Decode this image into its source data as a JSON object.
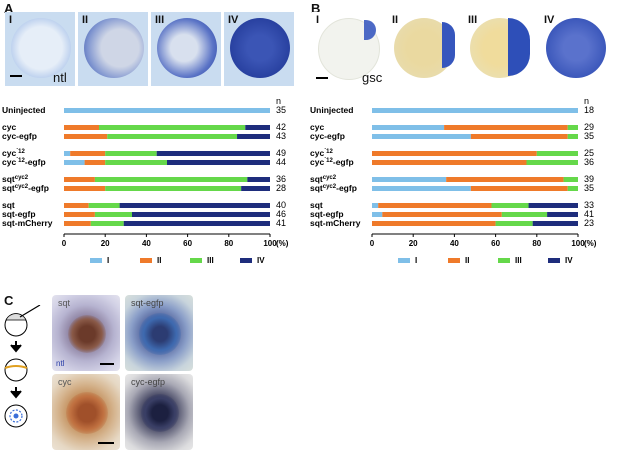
{
  "panels": {
    "a": {
      "letter": "A",
      "stain": "ntl"
    },
    "b": {
      "letter": "B",
      "stain": "gsc"
    },
    "c": {
      "letter": "C"
    }
  },
  "classes": [
    "I",
    "II",
    "III",
    "IV"
  ],
  "colors": {
    "I": "#7fbfe8",
    "II": "#ef7a2a",
    "III": "#65d84a",
    "IV": "#1e2d7c"
  },
  "axis": {
    "ticks": [
      "0",
      "20",
      "40",
      "60",
      "80",
      "100"
    ],
    "unit": "(%)",
    "n_header": "n"
  },
  "panelC": {
    "photos": [
      "sqt",
      "sqt-egfp",
      "cyc",
      "cyc-egfp"
    ],
    "stain": "ntl"
  },
  "chart_data": [
    {
      "type": "bar",
      "stacked": true,
      "orientation": "horizontal",
      "title": "A",
      "categories": [
        "Uninjected",
        "cyc",
        "cyc-egfp",
        "cyc⁽¹²",
        "cyc⁽¹²-egfp",
        "sqtᶜʸᶜ²",
        "sqtᶜʸᶜ²-egfp",
        "sqt",
        "sqt-egfp",
        "sqt-mCherry"
      ],
      "labels": [
        {
          "base": "Uninjected",
          "sup": ""
        },
        {
          "base": "cyc",
          "sup": ""
        },
        {
          "base": "cyc-egfp",
          "sup": ""
        },
        {
          "base": "cyc",
          "sup": "´12"
        },
        {
          "base": "cyc",
          "sup": "´12",
          "tail": "-egfp"
        },
        {
          "base": "sqt",
          "sup": "cyc2"
        },
        {
          "base": "sqt",
          "sup": "cyc2",
          "tail": "-egfp"
        },
        {
          "base": "sqt",
          "sup": ""
        },
        {
          "base": "sqt-egfp",
          "sup": ""
        },
        {
          "base": "sqt-mCherry",
          "sup": ""
        }
      ],
      "groups": [
        [
          0
        ],
        [
          1,
          2
        ],
        [
          3,
          4
        ],
        [
          5,
          6
        ],
        [
          7,
          8,
          9
        ]
      ],
      "n": [
        35,
        42,
        43,
        49,
        44,
        36,
        28,
        40,
        46,
        41
      ],
      "series": [
        {
          "name": "I",
          "values": [
            100,
            0,
            0,
            3,
            10,
            0,
            0,
            0,
            0,
            0
          ]
        },
        {
          "name": "II",
          "values": [
            0,
            17,
            21,
            17,
            10,
            15,
            20,
            12,
            15,
            13
          ]
        },
        {
          "name": "III",
          "values": [
            0,
            71,
            63,
            25,
            30,
            74,
            66,
            15,
            18,
            16
          ]
        },
        {
          "name": "IV",
          "values": [
            0,
            12,
            16,
            55,
            50,
            11,
            14,
            73,
            67,
            71
          ]
        }
      ],
      "xlim": [
        0,
        100
      ],
      "xlabel": "(%)"
    },
    {
      "type": "bar",
      "stacked": true,
      "orientation": "horizontal",
      "title": "B",
      "labels": [
        {
          "base": "Uninjected",
          "sup": ""
        },
        {
          "base": "cyc",
          "sup": ""
        },
        {
          "base": "cyc-egfp",
          "sup": ""
        },
        {
          "base": "cyc",
          "sup": "´12"
        },
        {
          "base": "cyc",
          "sup": "´12",
          "tail": "-egfp"
        },
        {
          "base": "sqt",
          "sup": "cyc2"
        },
        {
          "base": "sqt",
          "sup": "cyc2",
          "tail": "-egfp"
        },
        {
          "base": "sqt",
          "sup": ""
        },
        {
          "base": "sqt-egfp",
          "sup": ""
        },
        {
          "base": "sqt-mCherry",
          "sup": ""
        }
      ],
      "groups": [
        [
          0
        ],
        [
          1,
          2
        ],
        [
          3,
          4
        ],
        [
          5,
          6
        ],
        [
          7,
          8,
          9
        ]
      ],
      "n": [
        18,
        29,
        35,
        25,
        36,
        39,
        35,
        33,
        41,
        23
      ],
      "series": [
        {
          "name": "I",
          "values": [
            100,
            35,
            48,
            0,
            0,
            36,
            48,
            3,
            5,
            0
          ]
        },
        {
          "name": "II",
          "values": [
            0,
            60,
            47,
            80,
            75,
            57,
            47,
            55,
            58,
            60
          ]
        },
        {
          "name": "III",
          "values": [
            0,
            5,
            5,
            20,
            25,
            7,
            5,
            18,
            22,
            18
          ]
        },
        {
          "name": "IV",
          "values": [
            0,
            0,
            0,
            0,
            0,
            0,
            0,
            24,
            15,
            22
          ]
        }
      ],
      "xlim": [
        0,
        100
      ],
      "xlabel": "(%)"
    }
  ]
}
